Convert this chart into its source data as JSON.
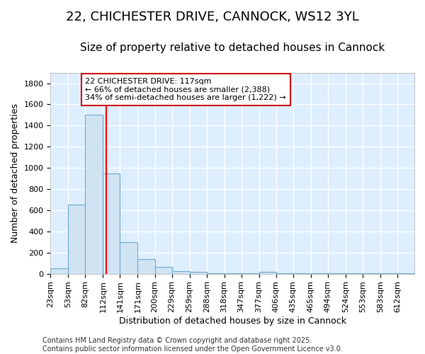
{
  "title": "22, CHICHESTER DRIVE, CANNOCK, WS12 3YL",
  "subtitle": "Size of property relative to detached houses in Cannock",
  "xlabel": "Distribution of detached houses by size in Cannock",
  "ylabel": "Number of detached properties",
  "bin_labels": [
    "23sqm",
    "53sqm",
    "82sqm",
    "112sqm",
    "141sqm",
    "171sqm",
    "200sqm",
    "229sqm",
    "259sqm",
    "288sqm",
    "318sqm",
    "347sqm",
    "377sqm",
    "406sqm",
    "435sqm",
    "465sqm",
    "494sqm",
    "524sqm",
    "553sqm",
    "583sqm",
    "612sqm"
  ],
  "bar_heights": [
    50,
    650,
    1500,
    950,
    300,
    135,
    65,
    25,
    15,
    5,
    5,
    5,
    15,
    2,
    2,
    2,
    2,
    2,
    2,
    2,
    2
  ],
  "bin_edges": [
    23,
    53,
    82,
    112,
    141,
    171,
    200,
    229,
    259,
    288,
    318,
    347,
    377,
    406,
    435,
    465,
    494,
    524,
    553,
    583,
    612
  ],
  "bar_color": "#d0e3f3",
  "bar_edge_color": "#6aaad4",
  "plot_bg_color": "#ddeeff",
  "fig_bg_color": "#ffffff",
  "grid_color": "#ffffff",
  "red_line_x": 117,
  "annotation_text": "22 CHICHESTER DRIVE: 117sqm\n← 66% of detached houses are smaller (2,388)\n34% of semi-detached houses are larger (1,222) →",
  "annotation_box_color": "#ffffff",
  "annotation_border_color": "#cc0000",
  "ylim": [
    0,
    1900
  ],
  "yticks": [
    0,
    200,
    400,
    600,
    800,
    1000,
    1200,
    1400,
    1600,
    1800
  ],
  "footer_text": "Contains HM Land Registry data © Crown copyright and database right 2025.\nContains public sector information licensed under the Open Government Licence v3.0.",
  "title_fontsize": 13,
  "subtitle_fontsize": 11,
  "label_fontsize": 9,
  "tick_fontsize": 8,
  "annotation_fontsize": 8,
  "footer_fontsize": 7
}
